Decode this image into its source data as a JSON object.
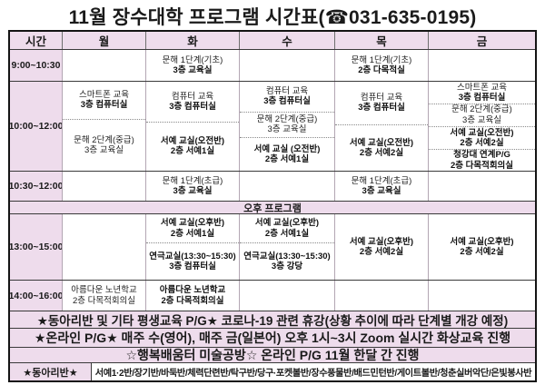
{
  "title": "11월 장수대학 프로그램 시간표(☎031-635-0195)",
  "header": {
    "time": "시간",
    "days": [
      "월",
      "화",
      "수",
      "목",
      "금"
    ]
  },
  "rows": {
    "r1": {
      "time": "9:00~10:30",
      "tue": {
        "name": "문해 1단계(기초)",
        "room": "3층 교육실"
      },
      "thu": {
        "name": "문해 1단계(기초)",
        "room": "2층 다목적실"
      }
    },
    "r2": {
      "time": "10:00~12:00",
      "mon": [
        {
          "name": "스마트폰 교육",
          "room": "3층 컴퓨터실"
        },
        {
          "name": "문해 2단계(중급)",
          "room": "3층 교육실"
        }
      ],
      "tue": [
        {
          "name": "컴퓨터 교육",
          "room": "3층 컴퓨터실"
        },
        {
          "name": "서예 교실(오전반)",
          "room": "2층 서예1실"
        }
      ],
      "wed": [
        {
          "name": "컴퓨터 교육",
          "room": "3층 컴퓨터실"
        },
        {
          "name": "문해 2단계(중급)",
          "room": "3층 교육실"
        },
        {
          "name": "서예 교실 (오전반)",
          "room": "2층 서예1실"
        }
      ],
      "thu": [
        {
          "name": "컴퓨터 교육",
          "room": "3층 컴퓨터실"
        },
        {
          "name": "서예 교실(오전반)",
          "room": "2층 서예2실"
        }
      ],
      "fri": [
        {
          "name": "스마트폰 교육",
          "room": "3층 컴퓨터실"
        },
        {
          "name": "문해 2단계(중급)",
          "room": "3층 교육실"
        },
        {
          "name": "서예 교실(오전반)",
          "room": "2층 서예2실"
        },
        {
          "name": "청강대 연계P/G",
          "room": "2층 다목적회의실"
        }
      ]
    },
    "r3": {
      "time": "10:30~12:00",
      "tue": {
        "name": "문해 1단계(초급)",
        "room": "3층 교육실"
      },
      "thu": {
        "name": "문해 1단계(초급)",
        "room": "3층 교육실"
      }
    },
    "band": "오후 프로그램",
    "r4": {
      "time": "13:00~15:00",
      "tue": [
        {
          "name": "서예 교실(오후반)",
          "room": "2층 서예1실"
        },
        {
          "name": "연극교실(13:30~15:30)",
          "room": "3층 컴퓨터실"
        }
      ],
      "wed": [
        {
          "name": "서예 교실(오후반)",
          "room": "2층 서예1실"
        },
        {
          "name": "연극교실(13:30~15:30)",
          "room": "3층 강당"
        }
      ],
      "thu": [
        {
          "name": "서예 교실(오후반)",
          "room": "2층 서예2실"
        }
      ],
      "fri": [
        {
          "name": "서예 교실(오후반)",
          "room": "2층 서예2실"
        }
      ]
    },
    "r5": {
      "time": "14:00~16:00",
      "mon": {
        "name": "아름다운 노년학교",
        "room": "2층 다목적회의실"
      },
      "tue": {
        "name": "아름다운 노년학교",
        "room": "2층 다목적회의실"
      }
    }
  },
  "notes": [
    "★동아리반 및 기타 평생교육 P/G★ 코로나-19 관련 휴강(상황 추이에 따라 단계별 개강 예정)",
    "★온라인 P/G★ 매주 수(영어), 매주 금(일본어) 오후 1시~3시 Zoom 실시간 화상교육 진행",
    "☆행복배움터 미술공방☆ 온라인 P/G 11월 한달 간 진행"
  ],
  "club": {
    "label": "★동아리반★",
    "list": "서예1·2반/장기반/바둑반/체력단련반/탁구반/당구·포켓볼반/장수풍물반/배드민턴반/게이트볼반/청춘실버악단/은빛봉사반"
  },
  "colors": {
    "highlight": "#eedcec",
    "border_dark": "#141414",
    "border_light": "#b3a6b3",
    "text": "#1a1a1a"
  }
}
